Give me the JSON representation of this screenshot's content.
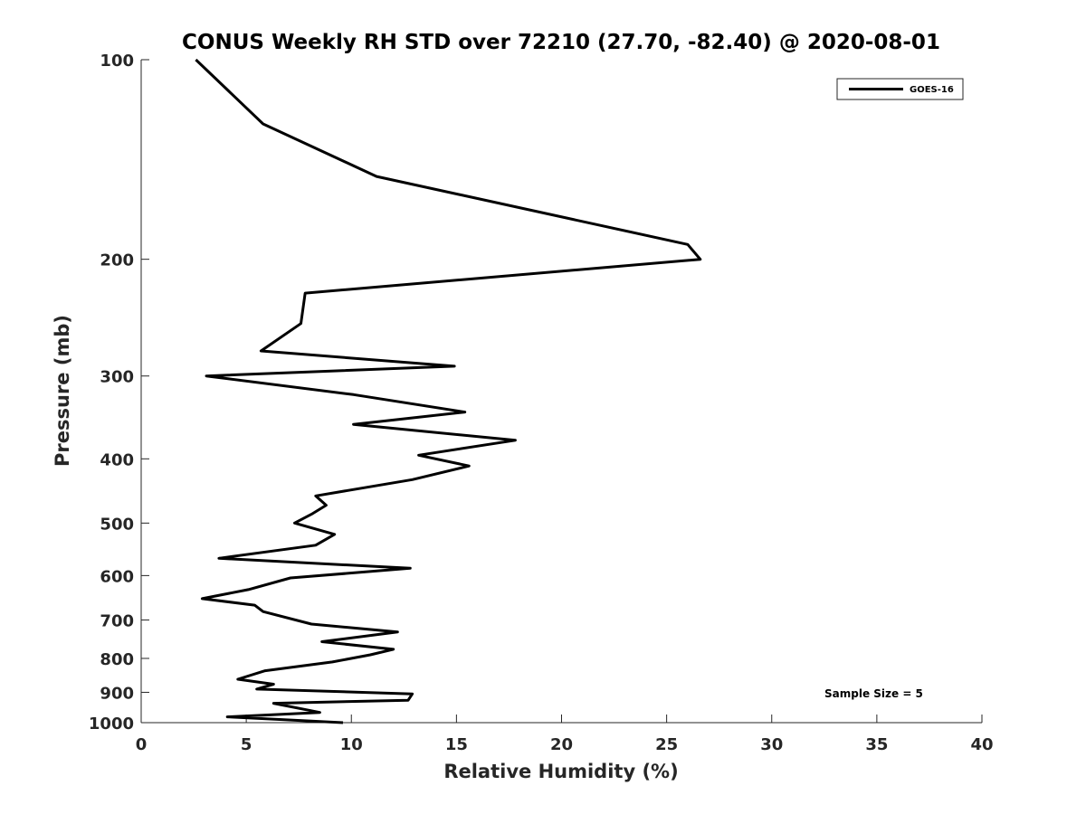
{
  "chart_data": {
    "type": "line",
    "title": "CONUS Weekly RH STD over 72210 (27.70, -82.40) @ 2020-08-01",
    "xlabel": "Relative Humidity (%)",
    "ylabel": "Pressure (mb)",
    "xlim": [
      0,
      40
    ],
    "ylim": [
      100,
      1000
    ],
    "y_scale": "log",
    "y_reversed": true,
    "x_ticks": [
      0,
      5,
      10,
      15,
      20,
      25,
      30,
      35,
      40
    ],
    "y_ticks": [
      100,
      200,
      300,
      400,
      500,
      600,
      700,
      800,
      900,
      1000
    ],
    "grid": false,
    "legend_position": "top-right",
    "line_color": "#000000",
    "annotation": "Sample Size = 5",
    "series": [
      {
        "name": "GOES-16",
        "x": [
          2.6,
          5.8,
          11.2,
          26.0,
          26.6,
          7.8,
          7.6,
          5.7,
          14.9,
          3.1,
          10.1,
          15.4,
          10.1,
          17.8,
          13.2,
          15.6,
          12.9,
          8.3,
          8.8,
          8.1,
          7.3,
          9.2,
          8.3,
          3.7,
          12.8,
          7.1,
          5.1,
          2.9,
          5.4,
          5.8,
          8.1,
          12.2,
          8.6,
          12.0,
          10.9,
          9.1,
          5.9,
          4.6,
          6.3,
          5.5,
          12.9,
          12.7,
          6.3,
          8.5,
          4.1,
          9.6
        ],
        "y": [
          100,
          125,
          150,
          190,
          200,
          225,
          250,
          275,
          290,
          300,
          320,
          340,
          355,
          375,
          395,
          410,
          430,
          455,
          470,
          485,
          500,
          520,
          540,
          565,
          585,
          605,
          630,
          650,
          665,
          680,
          710,
          730,
          755,
          775,
          790,
          810,
          835,
          860,
          875,
          890,
          905,
          925,
          935,
          965,
          980,
          1000
        ]
      }
    ]
  }
}
